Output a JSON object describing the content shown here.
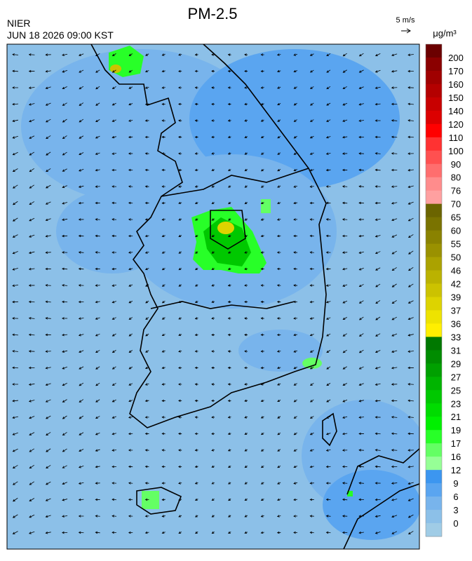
{
  "header": {
    "title": "PM-2.5",
    "agency": "NIER",
    "timestamp": "JUN 18 2026 09:00 KST",
    "wind_scale": "5 m/s"
  },
  "legend": {
    "unit": "μg/m³",
    "labels": [
      "200",
      "170",
      "160",
      "150",
      "140",
      "120",
      "110",
      "100",
      "90",
      "80",
      "76",
      "70",
      "65",
      "60",
      "55",
      "50",
      "46",
      "42",
      "39",
      "37",
      "36",
      "33",
      "31",
      "29",
      "27",
      "25",
      "23",
      "21",
      "19",
      "17",
      "16",
      "12",
      "9",
      "6",
      "3",
      "0"
    ],
    "colors": [
      "#6b0000",
      "#8b0000",
      "#a00000",
      "#b40000",
      "#c80000",
      "#dc0000",
      "#ff0000",
      "#ff3232",
      "#ff5050",
      "#ff6e6e",
      "#ff8c8c",
      "#ffa0a0",
      "#6b6400",
      "#7a7300",
      "#8a8200",
      "#9a9100",
      "#aba200",
      "#bbb200",
      "#ccc200",
      "#ddd300",
      "#eee300",
      "#ffef00",
      "#007800",
      "#008c00",
      "#00a000",
      "#00b400",
      "#00c800",
      "#00dc00",
      "#00f000",
      "#28ff28",
      "#64ff64",
      "#96ff96",
      "#3c96f0",
      "#5aa5f0",
      "#78b4ec",
      "#8cc0e8",
      "#a0cce6"
    ]
  }
}
